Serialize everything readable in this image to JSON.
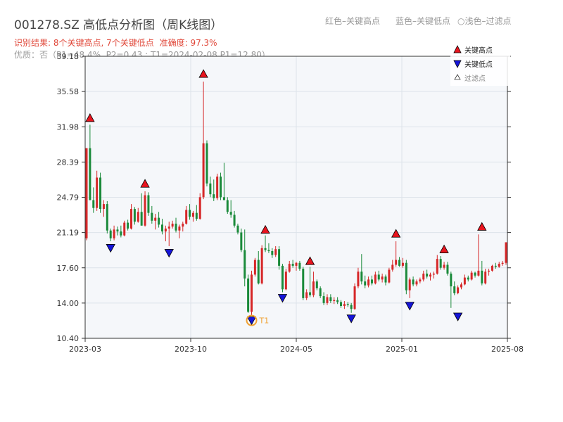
{
  "header": {
    "title": "001278.SZ 高低点分析图（周K线图）",
    "legend_high": "红色–关键高点",
    "legend_low": "蓝色–关键低点",
    "legend_filtered": "○浅色–过滤点",
    "result_text": "识别结果: 8个关键高点, 7个关键低点",
    "accuracy_text": "准确度: 97.3%",
    "quality_text": "优质：否（P1=48.4%, P2=0.43 ; T1=2024-02-08 P1=12.80）"
  },
  "colors": {
    "up": "#d62728",
    "down": "#1a8a3a",
    "high_marker": "#e8141e",
    "low_marker": "#1515d8",
    "t1_circle": "#f0a030",
    "plot_bg": "#f5f7fa",
    "grid": "#dde3ea"
  },
  "chart_data": {
    "type": "candlestick",
    "x_range": [
      "2023-03",
      "2025-08"
    ],
    "x_ticks": [
      "2023-03",
      "2023-10",
      "2024-05",
      "2025-01",
      "2025-08"
    ],
    "ylim": [
      10.4,
      39.18
    ],
    "y_ticks": [
      "39.18",
      "35.58",
      "31.98",
      "28.39",
      "24.79",
      "21.19",
      "17.60",
      "14.00",
      "10.40"
    ],
    "legend": [
      "关键高点",
      "关键低点",
      "过滤点"
    ],
    "annotation_t1": "T1",
    "t1_point": {
      "week": 48,
      "price": 12.8
    },
    "key_highs": [
      {
        "week": 1,
        "price": 32.3
      },
      {
        "week": 17,
        "price": 25.6
      },
      {
        "week": 34,
        "price": 36.8
      },
      {
        "week": 52,
        "price": 20.9
      },
      {
        "week": 65,
        "price": 17.7
      },
      {
        "week": 90,
        "price": 20.5
      },
      {
        "week": 104,
        "price": 18.9
      },
      {
        "week": 115,
        "price": 21.2
      }
    ],
    "key_lows": [
      {
        "week": 7,
        "price": 20.2
      },
      {
        "week": 24,
        "price": 19.7
      },
      {
        "week": 48,
        "price": 12.8
      },
      {
        "week": 57,
        "price": 15.1
      },
      {
        "week": 77,
        "price": 13.0
      },
      {
        "week": 94,
        "price": 14.3
      },
      {
        "week": 108,
        "price": 13.2
      }
    ],
    "candles": [
      [
        20.6,
        29.8,
        20.4,
        29.8
      ],
      [
        29.8,
        32.2,
        24.5,
        24.5
      ],
      [
        24.5,
        25.8,
        23.2,
        23.7
      ],
      [
        23.7,
        27.5,
        23.4,
        26.8
      ],
      [
        26.8,
        27.3,
        23.2,
        23.6
      ],
      [
        23.6,
        24.5,
        22.8,
        24.1
      ],
      [
        24.1,
        24.4,
        21.1,
        21.4
      ],
      [
        21.4,
        21.6,
        20.3,
        20.6
      ],
      [
        20.6,
        21.9,
        20.4,
        21.5
      ],
      [
        21.5,
        21.8,
        20.9,
        21.3
      ],
      [
        21.3,
        21.9,
        20.7,
        20.9
      ],
      [
        20.9,
        22.4,
        20.8,
        22.2
      ],
      [
        22.2,
        22.5,
        21.4,
        21.6
      ],
      [
        21.6,
        24.1,
        21.5,
        23.6
      ],
      [
        23.6,
        23.8,
        22.0,
        22.3
      ],
      [
        22.3,
        23.7,
        22.2,
        23.3
      ],
      [
        23.3,
        25.2,
        21.9,
        21.9
      ],
      [
        21.9,
        25.4,
        21.8,
        25.0
      ],
      [
        25.0,
        25.3,
        22.9,
        23.2
      ],
      [
        23.2,
        23.9,
        22.1,
        22.4
      ],
      [
        22.4,
        23.1,
        21.5,
        22.7
      ],
      [
        22.7,
        23.3,
        21.7,
        22.0
      ],
      [
        22.0,
        22.6,
        21.0,
        21.3
      ],
      [
        21.3,
        21.9,
        20.3,
        21.6
      ],
      [
        21.6,
        22.3,
        19.8,
        21.8
      ],
      [
        21.8,
        22.4,
        21.6,
        22.1
      ],
      [
        22.1,
        22.7,
        21.2,
        21.4
      ],
      [
        21.4,
        22.0,
        20.6,
        21.8
      ],
      [
        21.8,
        22.3,
        21.3,
        22.1
      ],
      [
        22.1,
        23.9,
        22.0,
        23.5
      ],
      [
        23.5,
        24.1,
        22.5,
        22.8
      ],
      [
        22.8,
        23.4,
        22.3,
        23.2
      ],
      [
        23.2,
        24.0,
        22.4,
        22.6
      ],
      [
        22.6,
        25.2,
        22.5,
        24.8
      ],
      [
        24.8,
        36.6,
        24.6,
        30.3
      ],
      [
        30.3,
        30.6,
        25.9,
        26.2
      ],
      [
        26.2,
        26.9,
        24.8,
        25.1
      ],
      [
        25.1,
        26.6,
        24.4,
        24.7
      ],
      [
        24.7,
        27.2,
        24.5,
        26.9
      ],
      [
        26.9,
        27.3,
        24.5,
        24.8
      ],
      [
        24.8,
        28.3,
        24.5,
        24.5
      ],
      [
        24.5,
        24.8,
        23.1,
        23.3
      ],
      [
        23.3,
        24.5,
        22.7,
        23.0
      ],
      [
        23.0,
        23.4,
        21.7,
        21.9
      ],
      [
        21.9,
        22.1,
        21.0,
        21.2
      ],
      [
        21.2,
        21.6,
        19.2,
        19.4
      ],
      [
        19.4,
        21.5,
        15.7,
        16.5
      ],
      [
        16.5,
        16.9,
        13.0,
        13.1
      ],
      [
        13.1,
        17.3,
        12.8,
        16.9
      ],
      [
        16.9,
        18.6,
        16.7,
        18.4
      ],
      [
        18.4,
        19.3,
        15.9,
        16.0
      ],
      [
        16.0,
        19.9,
        15.9,
        19.6
      ],
      [
        19.6,
        20.9,
        19.2,
        19.4
      ],
      [
        19.4,
        20.1,
        19.1,
        19.3
      ],
      [
        19.3,
        19.6,
        18.6,
        18.9
      ],
      [
        18.9,
        19.8,
        18.7,
        19.5
      ],
      [
        19.5,
        19.8,
        17.4,
        17.8
      ],
      [
        17.8,
        18.0,
        15.1,
        15.4
      ],
      [
        15.4,
        17.5,
        15.3,
        17.2
      ],
      [
        17.2,
        18.3,
        17.1,
        18.0
      ],
      [
        18.0,
        18.4,
        17.6,
        17.8
      ],
      [
        17.8,
        18.2,
        17.3,
        18.1
      ],
      [
        18.1,
        18.3,
        17.3,
        17.5
      ],
      [
        17.5,
        17.7,
        14.3,
        14.5
      ],
      [
        14.5,
        15.4,
        14.3,
        15.1
      ],
      [
        15.1,
        17.7,
        14.6,
        14.8
      ],
      [
        14.8,
        17.2,
        14.6,
        16.2
      ],
      [
        16.2,
        16.4,
        15.3,
        15.5
      ],
      [
        15.5,
        15.7,
        14.5,
        14.7
      ],
      [
        14.7,
        15.1,
        13.8,
        14.0
      ],
      [
        14.0,
        14.9,
        13.8,
        14.6
      ],
      [
        14.6,
        14.9,
        14.0,
        14.2
      ],
      [
        14.2,
        14.6,
        13.9,
        14.3
      ],
      [
        14.3,
        14.6,
        13.9,
        14.1
      ],
      [
        14.1,
        14.3,
        13.5,
        13.7
      ],
      [
        13.7,
        14.2,
        13.4,
        13.9
      ],
      [
        13.9,
        14.1,
        13.6,
        13.8
      ],
      [
        13.8,
        14.0,
        13.0,
        13.4
      ],
      [
        13.4,
        16.0,
        13.3,
        15.7
      ],
      [
        15.7,
        17.6,
        15.5,
        17.2
      ],
      [
        17.2,
        19.0,
        15.9,
        16.2
      ],
      [
        16.2,
        16.8,
        15.5,
        15.8
      ],
      [
        15.8,
        16.7,
        15.6,
        16.4
      ],
      [
        16.4,
        16.8,
        15.8,
        16.0
      ],
      [
        16.0,
        17.2,
        15.9,
        16.9
      ],
      [
        16.9,
        17.3,
        16.2,
        16.4
      ],
      [
        16.4,
        17.0,
        16.1,
        16.7
      ],
      [
        16.7,
        16.9,
        15.8,
        16.1
      ],
      [
        16.1,
        17.6,
        16.0,
        17.4
      ],
      [
        17.4,
        18.4,
        17.2,
        17.9
      ],
      [
        17.9,
        20.3,
        17.7,
        18.4
      ],
      [
        18.4,
        18.7,
        17.7,
        17.8
      ],
      [
        17.8,
        18.6,
        17.6,
        18.1
      ],
      [
        18.1,
        18.4,
        14.9,
        15.3
      ],
      [
        15.3,
        16.6,
        14.5,
        16.4
      ],
      [
        16.4,
        16.7,
        15.7,
        15.9
      ],
      [
        15.9,
        16.4,
        15.7,
        16.2
      ],
      [
        16.2,
        16.6,
        16.0,
        16.4
      ],
      [
        16.4,
        17.3,
        16.2,
        17.0
      ],
      [
        17.0,
        17.4,
        16.5,
        16.7
      ],
      [
        16.7,
        17.1,
        16.3,
        16.9
      ],
      [
        16.9,
        17.2,
        16.5,
        17.0
      ],
      [
        17.0,
        18.9,
        16.9,
        18.5
      ],
      [
        18.5,
        18.8,
        17.4,
        17.6
      ],
      [
        17.6,
        18.2,
        17.4,
        17.9
      ],
      [
        17.9,
        18.2,
        16.8,
        17.0
      ],
      [
        17.0,
        17.2,
        13.5,
        15.7
      ],
      [
        15.7,
        16.2,
        14.8,
        15.0
      ],
      [
        15.0,
        15.8,
        14.9,
        15.6
      ],
      [
        15.6,
        16.1,
        15.4,
        15.9
      ],
      [
        15.9,
        16.9,
        15.8,
        16.6
      ],
      [
        16.6,
        16.8,
        16.2,
        16.4
      ],
      [
        16.4,
        17.3,
        16.3,
        17.1
      ],
      [
        17.1,
        17.2,
        16.6,
        16.8
      ],
      [
        16.8,
        21.0,
        16.7,
        17.3
      ],
      [
        17.3,
        18.3,
        15.8,
        16.0
      ],
      [
        16.0,
        17.5,
        15.9,
        17.2
      ],
      [
        17.2,
        17.5,
        16.8,
        17.3
      ],
      [
        17.3,
        17.9,
        17.2,
        17.8
      ],
      [
        17.8,
        18.1,
        17.5,
        17.7
      ],
      [
        17.7,
        18.2,
        17.6,
        18.0
      ],
      [
        18.0,
        18.3,
        17.8,
        18.1
      ],
      [
        18.1,
        20.2,
        17.9,
        20.2
      ]
    ]
  }
}
